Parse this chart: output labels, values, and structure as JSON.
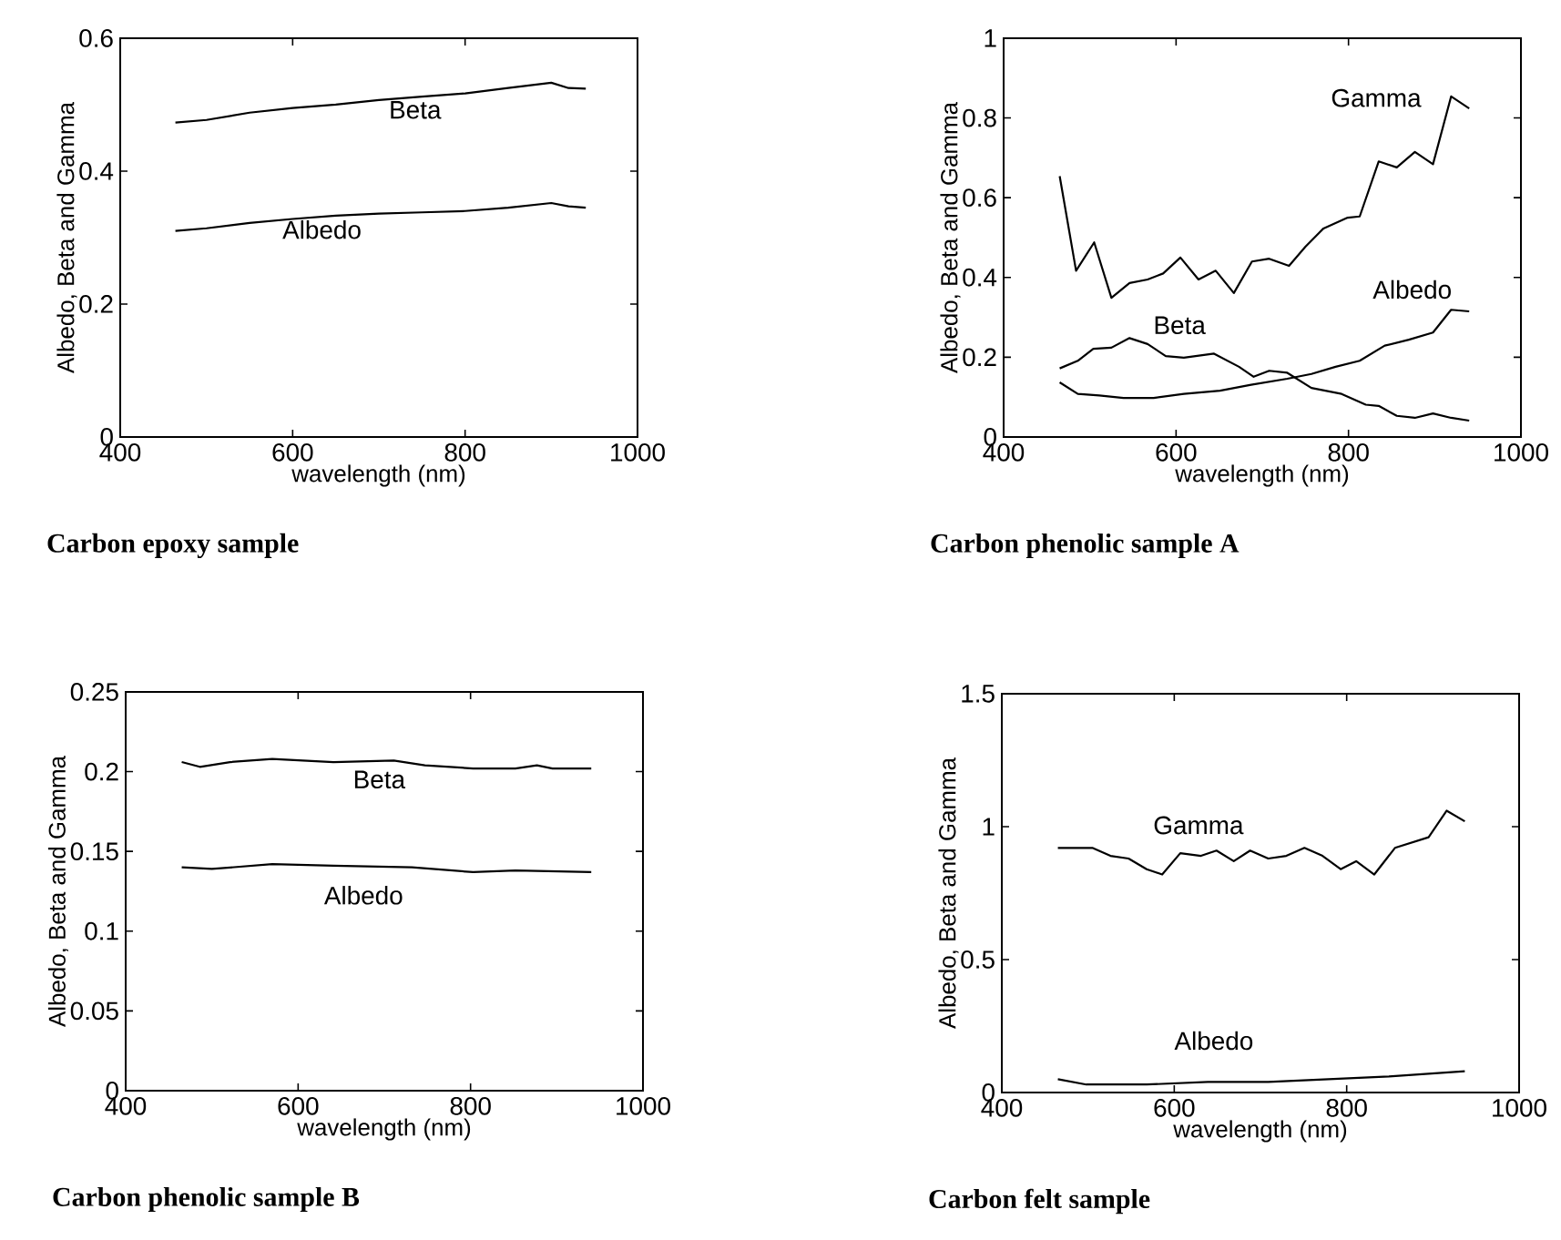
{
  "chart_data": [
    {
      "type": "line",
      "title": "Carbon epoxy sample",
      "xlabel": "wavelength (nm)",
      "ylabel": "Albedo, Beta and Gamma",
      "xlim": [
        400,
        1000
      ],
      "xticks": [
        400,
        600,
        800,
        1000
      ],
      "ylim": [
        0,
        0.6
      ],
      "yticks": [
        0,
        0.2,
        0.4,
        0.6
      ],
      "grid": false,
      "legend": false,
      "series": [
        {
          "name": "Beta",
          "color": "#000000",
          "x": [
            464,
            500,
            550,
            600,
            650,
            700,
            750,
            800,
            850,
            900,
            920,
            940
          ],
          "values": [
            0.473,
            0.477,
            0.488,
            0.495,
            0.5,
            0.507,
            0.512,
            0.517,
            0.525,
            0.533,
            0.525,
            0.524
          ]
        },
        {
          "name": "Albedo",
          "color": "#000000",
          "x": [
            464,
            500,
            550,
            600,
            650,
            700,
            750,
            800,
            850,
            900,
            920,
            940
          ],
          "values": [
            0.31,
            0.314,
            0.322,
            0.328,
            0.333,
            0.336,
            0.338,
            0.34,
            0.345,
            0.352,
            0.347,
            0.345
          ]
        }
      ]
    },
    {
      "type": "line",
      "title": "Carbon phenolic sample A",
      "xlabel": "wavelength (nm)",
      "ylabel": "Albedo, Beta and Gamma",
      "xlim": [
        400,
        1000
      ],
      "xticks": [
        400,
        600,
        800,
        1000
      ],
      "ylim": [
        0,
        1
      ],
      "yticks": [
        0,
        0.2,
        0.4,
        0.6,
        0.8,
        1
      ],
      "grid": false,
      "legend": false,
      "series": [
        {
          "name": "Gamma",
          "color": "#000000",
          "x": [
            465,
            484,
            505,
            525,
            546,
            567,
            585,
            605,
            626,
            646,
            667,
            688,
            708,
            731,
            750,
            771,
            799,
            813,
            835,
            856,
            877,
            898,
            919,
            940
          ],
          "values": [
            0.654,
            0.417,
            0.488,
            0.349,
            0.386,
            0.395,
            0.41,
            0.45,
            0.395,
            0.417,
            0.361,
            0.44,
            0.447,
            0.429,
            0.477,
            0.523,
            0.55,
            0.553,
            0.691,
            0.676,
            0.715,
            0.684,
            0.854,
            0.824
          ]
        },
        {
          "name": "Albedo",
          "color": "#000000",
          "x": [
            465,
            486,
            511,
            539,
            574,
            609,
            651,
            687,
            729,
            757,
            785,
            813,
            842,
            870,
            898,
            919,
            940
          ],
          "values": [
            0.137,
            0.108,
            0.104,
            0.098,
            0.098,
            0.108,
            0.116,
            0.131,
            0.146,
            0.158,
            0.176,
            0.191,
            0.229,
            0.244,
            0.262,
            0.319,
            0.315
          ]
        },
        {
          "name": "Beta",
          "color": "#000000",
          "x": [
            465,
            486,
            504,
            525,
            546,
            567,
            588,
            609,
            644,
            673,
            690,
            708,
            729,
            757,
            792,
            820,
            835,
            856,
            877,
            898,
            919,
            940
          ],
          "values": [
            0.172,
            0.191,
            0.221,
            0.224,
            0.248,
            0.233,
            0.203,
            0.199,
            0.209,
            0.176,
            0.151,
            0.166,
            0.161,
            0.123,
            0.108,
            0.081,
            0.078,
            0.053,
            0.048,
            0.059,
            0.048,
            0.041
          ]
        }
      ]
    },
    {
      "type": "line",
      "title": "Carbon phenolic sample B",
      "xlabel": "wavelength (nm)",
      "ylabel": "Albedo, Beta and Gamma",
      "xlim": [
        400,
        1000
      ],
      "xticks": [
        400,
        600,
        800,
        1000
      ],
      "ylim": [
        0,
        0.25
      ],
      "yticks": [
        0,
        0.05,
        0.1,
        0.15,
        0.2,
        0.25
      ],
      "grid": false,
      "legend": false,
      "series": [
        {
          "name": "Beta",
          "color": "#000000",
          "x": [
            465,
            486,
            521,
            570,
            641,
            711,
            747,
            803,
            852,
            877,
            895,
            940
          ],
          "values": [
            0.206,
            0.203,
            0.206,
            0.208,
            0.206,
            0.207,
            0.204,
            0.202,
            0.202,
            0.204,
            0.202,
            0.202
          ]
        },
        {
          "name": "Albedo",
          "color": "#000000",
          "x": [
            465,
            500,
            570,
            641,
            732,
            803,
            852,
            940
          ],
          "values": [
            0.14,
            0.139,
            0.142,
            0.141,
            0.14,
            0.137,
            0.138,
            0.137
          ]
        }
      ]
    },
    {
      "type": "line",
      "title": "Carbon felt sample",
      "xlabel": "wavelength (nm)",
      "ylabel": "Albedo, Beta and Gamma",
      "xlim": [
        400,
        1000
      ],
      "xticks": [
        400,
        600,
        800,
        1000
      ],
      "ylim": [
        0,
        1.5
      ],
      "yticks": [
        0,
        0.5,
        1,
        1.5
      ],
      "grid": false,
      "legend": false,
      "series": [
        {
          "name": "Gamma",
          "color": "#000000",
          "x": [
            465,
            484,
            505,
            526,
            547,
            568,
            586,
            607,
            631,
            649,
            669,
            688,
            709,
            730,
            751,
            772,
            793,
            811,
            832,
            856,
            895,
            916,
            937
          ],
          "values": [
            0.92,
            0.92,
            0.92,
            0.89,
            0.88,
            0.84,
            0.82,
            0.9,
            0.89,
            0.91,
            0.87,
            0.91,
            0.88,
            0.89,
            0.92,
            0.89,
            0.84,
            0.87,
            0.82,
            0.92,
            0.96,
            1.06,
            1.02
          ]
        },
        {
          "name": "Albedo",
          "color": "#000000",
          "x": [
            465,
            498,
            568,
            639,
            709,
            779,
            849,
            937
          ],
          "values": [
            0.05,
            0.03,
            0.03,
            0.04,
            0.04,
            0.05,
            0.06,
            0.08
          ]
        }
      ]
    }
  ]
}
